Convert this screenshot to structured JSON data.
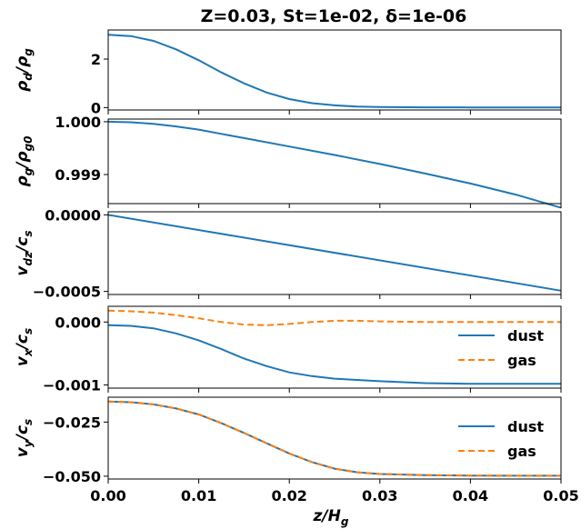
{
  "title": "Z=0.03, St=1e-02, δ=1e-06",
  "xlabel": {
    "base": "z/H",
    "sub": "g"
  },
  "x_ticks": [
    "0.00",
    "0.01",
    "0.02",
    "0.03",
    "0.04",
    "0.05"
  ],
  "colors": {
    "dust": "#1f77b4",
    "gas": "#ff7f0e",
    "axes": "#000000"
  },
  "chart_data": [
    {
      "type": "line",
      "ylabel": {
        "base": "ρ",
        "sub": "d",
        "mid": "/ρ",
        "sub2": "g"
      },
      "xlim": [
        0,
        0.05
      ],
      "ylim": [
        -0.1,
        3.2
      ],
      "y_ticks": [
        {
          "v": 0,
          "label": "0"
        },
        {
          "v": 2,
          "label": "2"
        }
      ],
      "series": [
        {
          "key": "dust",
          "style": "solid",
          "x": [
            0,
            0.0025,
            0.005,
            0.0075,
            0.01,
            0.0125,
            0.015,
            0.0175,
            0.02,
            0.0225,
            0.025,
            0.0275,
            0.03,
            0.035,
            0.04,
            0.045,
            0.05
          ],
          "y": [
            3.0,
            2.95,
            2.75,
            2.4,
            1.95,
            1.45,
            1.0,
            0.62,
            0.35,
            0.18,
            0.09,
            0.04,
            0.02,
            0.01,
            0.005,
            0.002,
            0.0
          ]
        }
      ]
    },
    {
      "type": "line",
      "ylabel": {
        "base": "ρ",
        "sub": "g",
        "mid": "/ρ",
        "sub2": "g0"
      },
      "xlim": [
        0,
        0.05
      ],
      "ylim": [
        0.99845,
        1.00005
      ],
      "y_ticks": [
        {
          "v": 0.999,
          "label": "0.999"
        },
        {
          "v": 1.0,
          "label": "1.000"
        }
      ],
      "series": [
        {
          "key": "gas",
          "color_key": "dust",
          "style": "solid",
          "x": [
            0,
            0.0025,
            0.005,
            0.0075,
            0.01,
            0.0125,
            0.015,
            0.02,
            0.025,
            0.03,
            0.035,
            0.04,
            0.045,
            0.05
          ],
          "y": [
            1.0,
            0.99999,
            0.99996,
            0.99991,
            0.99985,
            0.99977,
            0.99969,
            0.99953,
            0.99937,
            0.9992,
            0.99902,
            0.99883,
            0.99862,
            0.99837
          ]
        }
      ]
    },
    {
      "type": "line",
      "ylabel": {
        "base": "v",
        "sub": "dz",
        "mid": "/c",
        "sub2": "s"
      },
      "xlim": [
        0,
        0.05
      ],
      "ylim": [
        -0.00052,
        2e-05
      ],
      "y_ticks": [
        {
          "v": 0.0,
          "label": "0.0000"
        },
        {
          "v": -0.0005,
          "label": "−0.0005"
        }
      ],
      "series": [
        {
          "key": "dust",
          "style": "solid",
          "x": [
            0,
            0.05
          ],
          "y": [
            0.0,
            -0.000495
          ]
        }
      ]
    },
    {
      "type": "line",
      "ylabel": {
        "base": "v",
        "sub": "x",
        "mid": "/c",
        "sub2": "s"
      },
      "xlim": [
        0,
        0.05
      ],
      "ylim": [
        -0.00105,
        0.00025
      ],
      "y_ticks": [
        {
          "v": 0.0,
          "label": "0.000"
        },
        {
          "v": -0.001,
          "label": "−0.001"
        }
      ],
      "legend": {
        "placement": "right",
        "entries": [
          "dust",
          "gas"
        ]
      },
      "series": [
        {
          "key": "dust",
          "name": "dust",
          "style": "solid",
          "x": [
            0,
            0.0025,
            0.005,
            0.0075,
            0.01,
            0.0125,
            0.015,
            0.0175,
            0.02,
            0.0225,
            0.025,
            0.03,
            0.035,
            0.04,
            0.045,
            0.05
          ],
          "y": [
            -5e-05,
            -6e-05,
            -0.0001,
            -0.00018,
            -0.00029,
            -0.00043,
            -0.00058,
            -0.0007,
            -0.0008,
            -0.00086,
            -0.0009,
            -0.00094,
            -0.00097,
            -0.00098,
            -0.00098,
            -0.00098
          ]
        },
        {
          "key": "gas",
          "name": "gas",
          "style": "dashed",
          "x": [
            0,
            0.0025,
            0.005,
            0.0075,
            0.01,
            0.0125,
            0.015,
            0.0175,
            0.02,
            0.0225,
            0.025,
            0.0275,
            0.03,
            0.035,
            0.04,
            0.045,
            0.05
          ],
          "y": [
            0.00018,
            0.00017,
            0.00015,
            0.00011,
            6e-05,
            0.0,
            -4e-05,
            -5e-05,
            -3e-05,
            0.0,
            2e-05,
            2e-05,
            1e-05,
            0.0,
            0.0,
            0.0,
            0.0
          ]
        }
      ]
    },
    {
      "type": "line",
      "ylabel": {
        "base": "v",
        "sub": "y",
        "mid": "/c",
        "sub2": "s"
      },
      "xlim": [
        0,
        0.05
      ],
      "ylim": [
        -0.0513,
        -0.0135
      ],
      "y_ticks": [
        {
          "v": -0.025,
          "label": "−0.025"
        },
        {
          "v": -0.05,
          "label": "−0.050"
        }
      ],
      "legend": {
        "placement": "right",
        "entries": [
          "dust",
          "gas"
        ]
      },
      "series": [
        {
          "key": "dust",
          "name": "dust",
          "style": "solid",
          "x": [
            0,
            0.0025,
            0.005,
            0.0075,
            0.01,
            0.0125,
            0.015,
            0.0175,
            0.02,
            0.0225,
            0.025,
            0.0275,
            0.03,
            0.035,
            0.04,
            0.045,
            0.05
          ],
          "y": [
            -0.0155,
            -0.0158,
            -0.0168,
            -0.0187,
            -0.0215,
            -0.0255,
            -0.03,
            -0.0348,
            -0.0395,
            -0.0435,
            -0.0465,
            -0.0482,
            -0.049,
            -0.0495,
            -0.0497,
            -0.0498,
            -0.0498
          ]
        },
        {
          "key": "gas",
          "name": "gas",
          "style": "dashed",
          "x": [
            0,
            0.0025,
            0.005,
            0.0075,
            0.01,
            0.0125,
            0.015,
            0.0175,
            0.02,
            0.0225,
            0.025,
            0.0275,
            0.03,
            0.035,
            0.04,
            0.045,
            0.05
          ],
          "y": [
            -0.0155,
            -0.0158,
            -0.0168,
            -0.0187,
            -0.0215,
            -0.0255,
            -0.03,
            -0.0348,
            -0.0395,
            -0.0435,
            -0.0465,
            -0.0482,
            -0.049,
            -0.0495,
            -0.0497,
            -0.0498,
            -0.0498
          ]
        }
      ]
    }
  ]
}
